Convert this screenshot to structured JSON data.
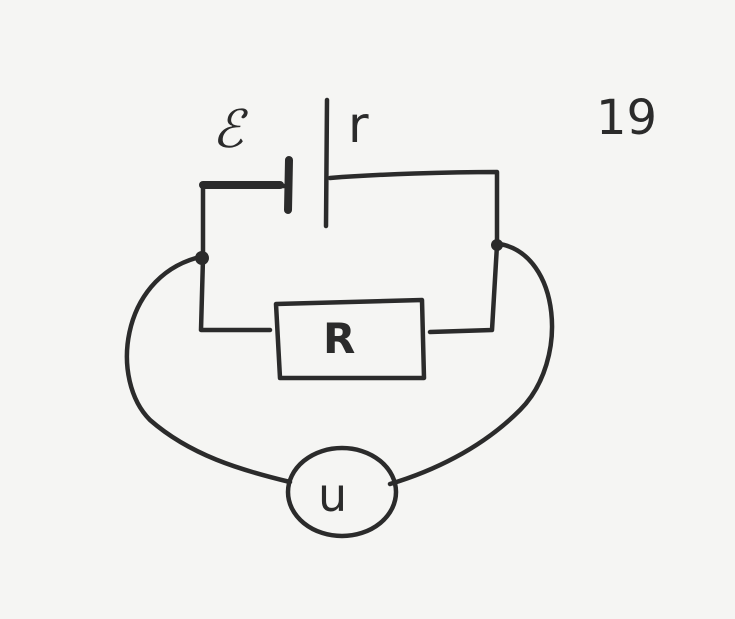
{
  "labels": {
    "emf": "ℰ",
    "internal_resistance": "r",
    "figure_number": "19",
    "resistor": "R",
    "voltmeter": "u"
  },
  "colors": {
    "ink": "#2b2b2b",
    "paper": "#f5f5f3"
  }
}
